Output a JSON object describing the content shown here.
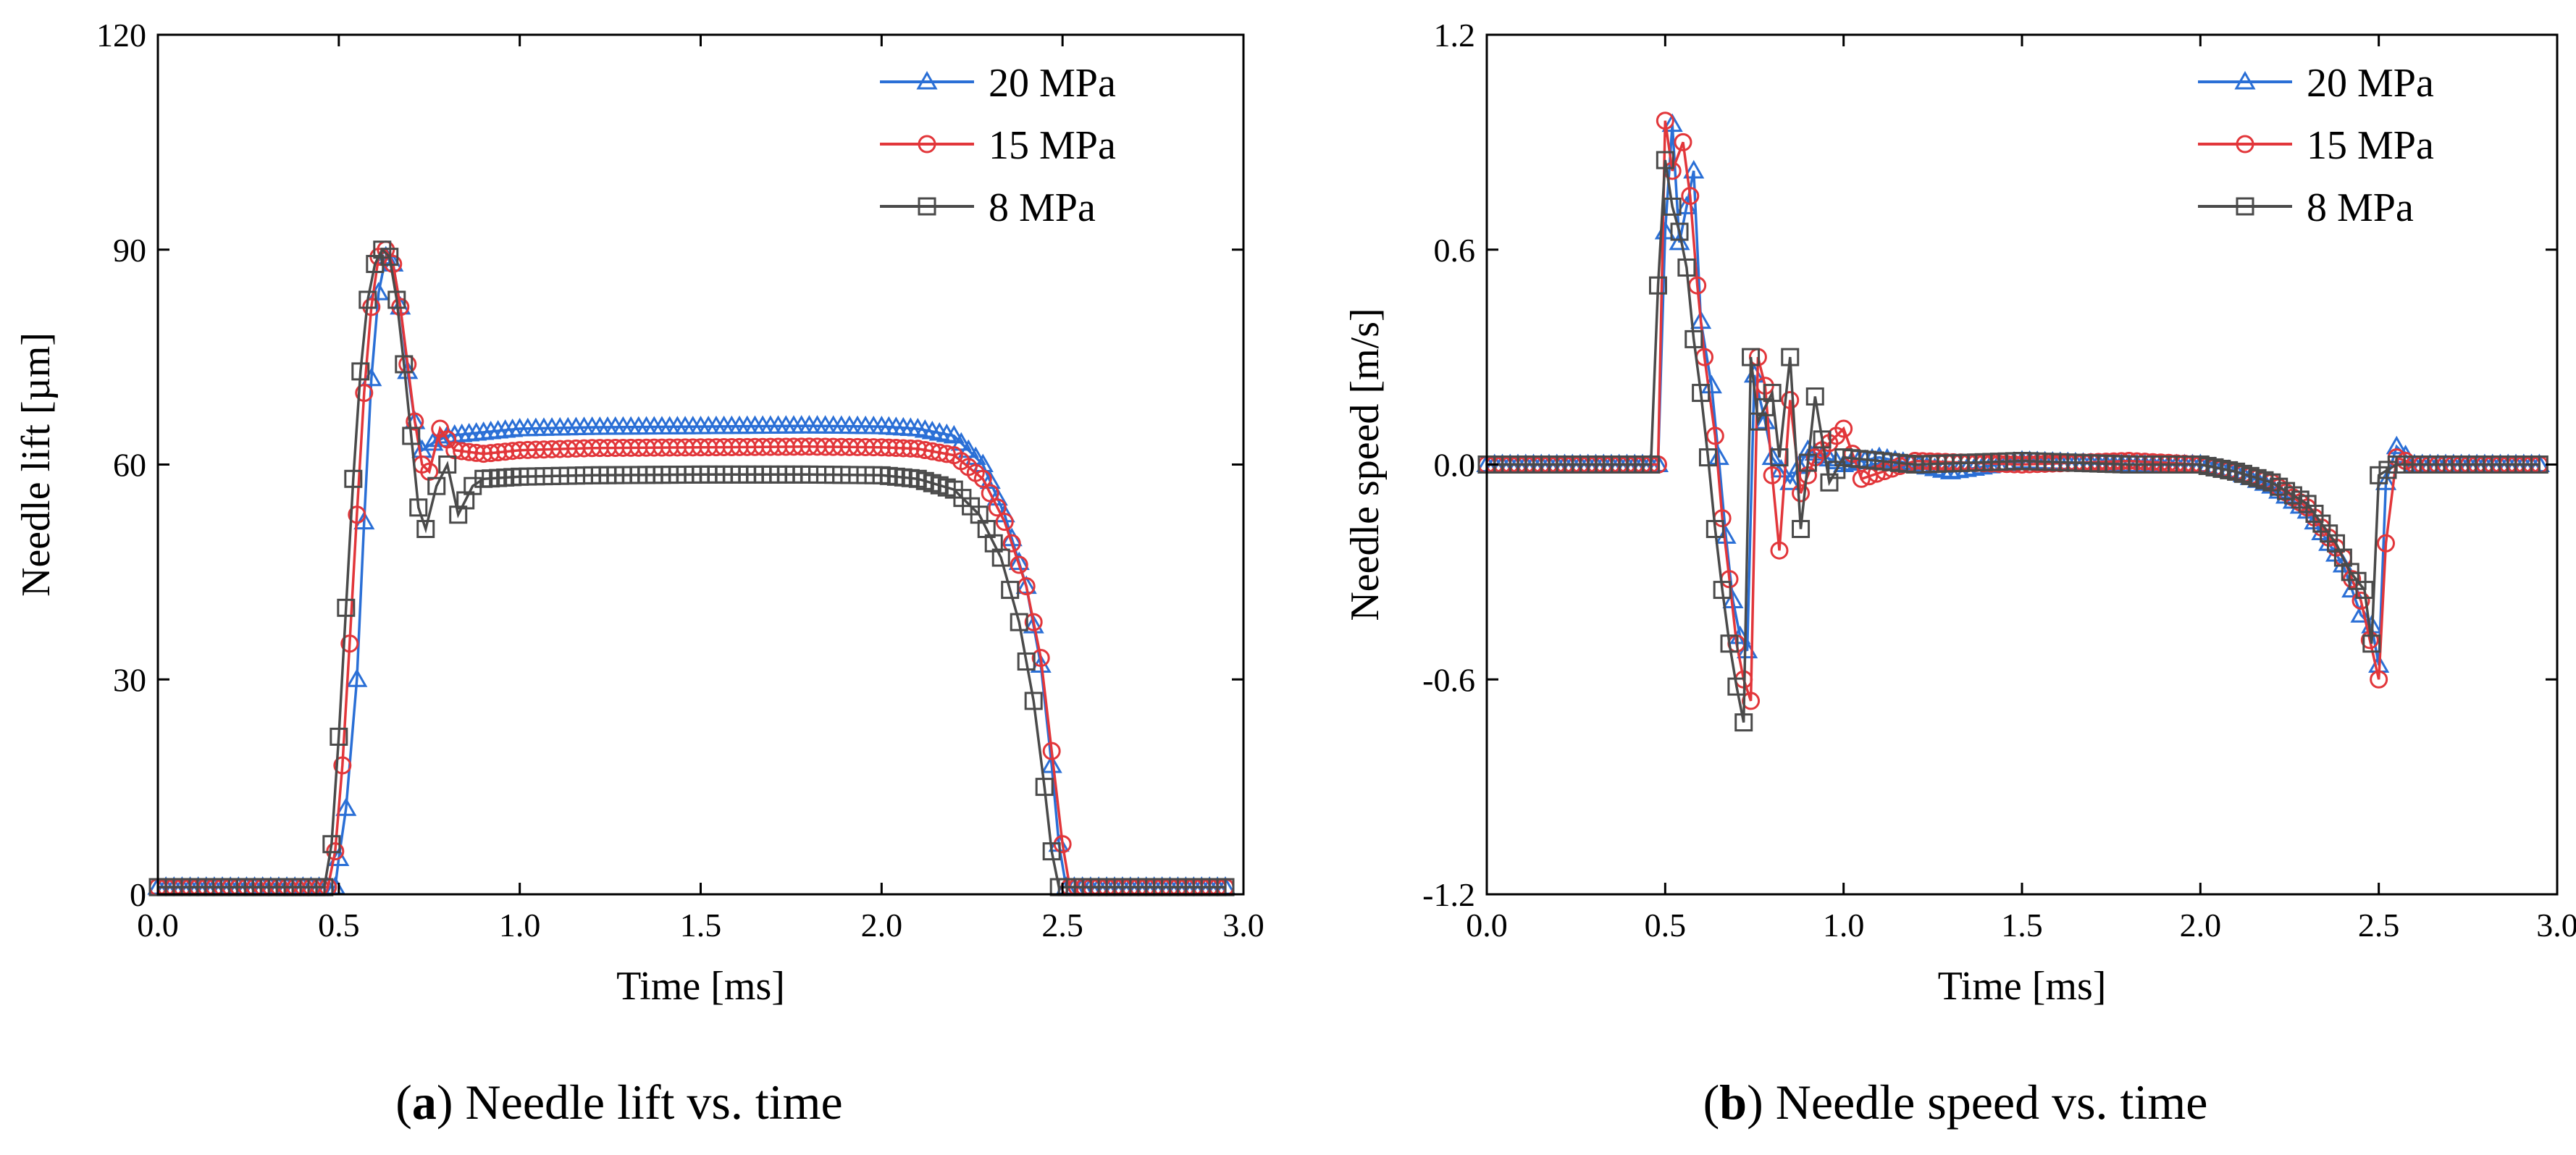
{
  "colors": {
    "p20": "#2a6fd6",
    "p15": "#e2363a",
    "p8": "#4a4a4a"
  },
  "captions": [
    {
      "letter": "a",
      "text": " Needle lift vs. time"
    },
    {
      "letter": "b",
      "text": " Needle speed vs. time"
    }
  ],
  "chart_data": [
    {
      "type": "line",
      "xlabel": "Time [ms]",
      "ylabel": "Needle lift [µm]",
      "xlim": [
        0,
        3.0
      ],
      "ylim": [
        0,
        120
      ],
      "xticks": [
        "0.0",
        "0.5",
        "1.0",
        "1.5",
        "2.0",
        "2.5",
        "3.0"
      ],
      "xtick_values": [
        0,
        0.5,
        1.0,
        1.5,
        2.0,
        2.5,
        3.0
      ],
      "yticks": [
        "0",
        "30",
        "60",
        "90",
        "120"
      ],
      "ytick_values": [
        0,
        30,
        60,
        90,
        120
      ],
      "legend_position": "top-right",
      "series": [
        {
          "name": "20 MPa",
          "marker": "triangle",
          "color_key": "p20",
          "points": [
            [
              0,
              1
            ],
            [
              0.49,
              1
            ],
            [
              0.5,
              5
            ],
            [
              0.52,
              12
            ],
            [
              0.55,
              30
            ],
            [
              0.57,
              52
            ],
            [
              0.59,
              72
            ],
            [
              0.61,
              84
            ],
            [
              0.63,
              89
            ],
            [
              0.65,
              88
            ],
            [
              0.67,
              82
            ],
            [
              0.69,
              73
            ],
            [
              0.71,
              66
            ],
            [
              0.73,
              62
            ],
            [
              0.76,
              63
            ],
            [
              0.8,
              64
            ],
            [
              0.9,
              64.5
            ],
            [
              1.0,
              65
            ],
            [
              1.2,
              65.2
            ],
            [
              1.5,
              65.3
            ],
            [
              1.8,
              65.4
            ],
            [
              2.0,
              65.3
            ],
            [
              2.1,
              65
            ],
            [
              2.2,
              64
            ],
            [
              2.28,
              60
            ],
            [
              2.34,
              53
            ],
            [
              2.4,
              43
            ],
            [
              2.44,
              32
            ],
            [
              2.47,
              18
            ],
            [
              2.49,
              7
            ],
            [
              2.51,
              1
            ],
            [
              2.6,
              1
            ],
            [
              2.95,
              1
            ]
          ]
        },
        {
          "name": "15 MPa",
          "marker": "circle",
          "color_key": "p15",
          "points": [
            [
              0,
              1
            ],
            [
              0.47,
              1
            ],
            [
              0.49,
              6
            ],
            [
              0.51,
              18
            ],
            [
              0.53,
              35
            ],
            [
              0.55,
              53
            ],
            [
              0.57,
              70
            ],
            [
              0.59,
              82
            ],
            [
              0.61,
              89
            ],
            [
              0.63,
              90
            ],
            [
              0.65,
              88
            ],
            [
              0.67,
              82
            ],
            [
              0.69,
              74
            ],
            [
              0.71,
              66
            ],
            [
              0.73,
              60
            ],
            [
              0.75,
              59
            ],
            [
              0.78,
              65
            ],
            [
              0.82,
              62
            ],
            [
              0.9,
              61.5
            ],
            [
              1.0,
              62
            ],
            [
              1.2,
              62.3
            ],
            [
              1.5,
              62.4
            ],
            [
              1.8,
              62.5
            ],
            [
              2.0,
              62.4
            ],
            [
              2.1,
              62.2
            ],
            [
              2.2,
              61.3
            ],
            [
              2.28,
              58
            ],
            [
              2.34,
              52
            ],
            [
              2.4,
              43
            ],
            [
              2.44,
              33
            ],
            [
              2.47,
              20
            ],
            [
              2.5,
              7
            ],
            [
              2.52,
              1
            ],
            [
              2.6,
              1
            ],
            [
              2.95,
              1
            ]
          ]
        },
        {
          "name": "8 MPa",
          "marker": "square",
          "color_key": "p8",
          "points": [
            [
              0,
              1
            ],
            [
              0.46,
              1
            ],
            [
              0.48,
              7
            ],
            [
              0.5,
              22
            ],
            [
              0.52,
              40
            ],
            [
              0.54,
              58
            ],
            [
              0.56,
              73
            ],
            [
              0.58,
              83
            ],
            [
              0.6,
              88
            ],
            [
              0.62,
              90
            ],
            [
              0.64,
              89
            ],
            [
              0.66,
              83
            ],
            [
              0.68,
              74
            ],
            [
              0.7,
              64
            ],
            [
              0.72,
              54
            ],
            [
              0.74,
              51
            ],
            [
              0.77,
              57
            ],
            [
              0.8,
              60
            ],
            [
              0.83,
              53
            ],
            [
              0.87,
              57
            ],
            [
              0.9,
              58
            ],
            [
              1.0,
              58.3
            ],
            [
              1.2,
              58.5
            ],
            [
              1.5,
              58.6
            ],
            [
              1.8,
              58.6
            ],
            [
              2.0,
              58.5
            ],
            [
              2.1,
              58
            ],
            [
              2.2,
              56.5
            ],
            [
              2.27,
              53
            ],
            [
              2.33,
              47
            ],
            [
              2.38,
              38
            ],
            [
              2.42,
              27
            ],
            [
              2.45,
              15
            ],
            [
              2.47,
              6
            ],
            [
              2.49,
              1
            ],
            [
              2.6,
              1
            ],
            [
              2.95,
              1
            ]
          ]
        }
      ]
    },
    {
      "type": "line",
      "xlabel": "Time [ms]",
      "ylabel": "Needle speed [m/s]",
      "xlim": [
        0,
        3.0
      ],
      "ylim": [
        -1.2,
        1.2
      ],
      "xticks": [
        "0.0",
        "0.5",
        "1.0",
        "1.5",
        "2.0",
        "2.5",
        "3.0"
      ],
      "xtick_values": [
        0,
        0.5,
        1.0,
        1.5,
        2.0,
        2.5,
        3.0
      ],
      "yticks": [
        "-1.2",
        "-0.6",
        "0.0",
        "0.6",
        "1.2"
      ],
      "ytick_values": [
        -1.2,
        -0.6,
        0,
        0.6,
        1.2
      ],
      "legend_position": "top-right",
      "series": [
        {
          "name": "20 MPa",
          "marker": "triangle",
          "color_key": "p20",
          "points": [
            [
              0,
              0
            ],
            [
              0.48,
              0
            ],
            [
              0.5,
              0.65
            ],
            [
              0.52,
              0.95
            ],
            [
              0.54,
              0.62
            ],
            [
              0.56,
              0.72
            ],
            [
              0.58,
              0.82
            ],
            [
              0.6,
              0.4
            ],
            [
              0.63,
              0.22
            ],
            [
              0.65,
              0.02
            ],
            [
              0.67,
              -0.2
            ],
            [
              0.69,
              -0.38
            ],
            [
              0.71,
              -0.48
            ],
            [
              0.73,
              -0.52
            ],
            [
              0.75,
              0.25
            ],
            [
              0.78,
              0.12
            ],
            [
              0.8,
              0.02
            ],
            [
              0.85,
              -0.05
            ],
            [
              0.9,
              0.04
            ],
            [
              1.0,
              0
            ],
            [
              1.1,
              0.02
            ],
            [
              1.3,
              -0.02
            ],
            [
              1.5,
              0.01
            ],
            [
              1.8,
              0
            ],
            [
              2.0,
              0
            ],
            [
              2.1,
              -0.02
            ],
            [
              2.2,
              -0.06
            ],
            [
              2.3,
              -0.13
            ],
            [
              2.4,
              -0.28
            ],
            [
              2.45,
              -0.42
            ],
            [
              2.48,
              -0.45
            ],
            [
              2.5,
              -0.56
            ],
            [
              2.52,
              -0.05
            ],
            [
              2.55,
              0.05
            ],
            [
              2.6,
              0
            ],
            [
              2.95,
              0
            ]
          ]
        },
        {
          "name": "15 MPa",
          "marker": "circle",
          "color_key": "p15",
          "points": [
            [
              0,
              0
            ],
            [
              0.48,
              0
            ],
            [
              0.5,
              0.96
            ],
            [
              0.52,
              0.82
            ],
            [
              0.55,
              0.9
            ],
            [
              0.57,
              0.75
            ],
            [
              0.59,
              0.5
            ],
            [
              0.61,
              0.3
            ],
            [
              0.64,
              0.08
            ],
            [
              0.66,
              -0.15
            ],
            [
              0.68,
              -0.32
            ],
            [
              0.7,
              -0.5
            ],
            [
              0.72,
              -0.6
            ],
            [
              0.74,
              -0.66
            ],
            [
              0.76,
              0.3
            ],
            [
              0.78,
              0.22
            ],
            [
              0.8,
              -0.03
            ],
            [
              0.82,
              -0.24
            ],
            [
              0.85,
              0.18
            ],
            [
              0.88,
              -0.08
            ],
            [
              0.92,
              0.02
            ],
            [
              1.0,
              0.1
            ],
            [
              1.05,
              -0.04
            ],
            [
              1.2,
              0.01
            ],
            [
              1.5,
              0
            ],
            [
              1.8,
              0.01
            ],
            [
              2.0,
              0
            ],
            [
              2.1,
              -0.02
            ],
            [
              2.2,
              -0.05
            ],
            [
              2.3,
              -0.12
            ],
            [
              2.4,
              -0.26
            ],
            [
              2.45,
              -0.38
            ],
            [
              2.5,
              -0.6
            ],
            [
              2.52,
              -0.22
            ],
            [
              2.55,
              0.02
            ],
            [
              2.6,
              0
            ],
            [
              2.95,
              0
            ]
          ]
        },
        {
          "name": "8 MPa",
          "marker": "square",
          "color_key": "p8",
          "points": [
            [
              0,
              0
            ],
            [
              0.46,
              0
            ],
            [
              0.48,
              0.5
            ],
            [
              0.5,
              0.85
            ],
            [
              0.52,
              0.72
            ],
            [
              0.54,
              0.65
            ],
            [
              0.56,
              0.55
            ],
            [
              0.58,
              0.35
            ],
            [
              0.6,
              0.2
            ],
            [
              0.62,
              0.02
            ],
            [
              0.64,
              -0.18
            ],
            [
              0.66,
              -0.35
            ],
            [
              0.68,
              -0.5
            ],
            [
              0.7,
              -0.62
            ],
            [
              0.72,
              -0.72
            ],
            [
              0.74,
              0.3
            ],
            [
              0.76,
              0.12
            ],
            [
              0.8,
              0.2
            ],
            [
              0.82,
              0.02
            ],
            [
              0.85,
              0.3
            ],
            [
              0.88,
              -0.18
            ],
            [
              0.92,
              0.19
            ],
            [
              0.96,
              -0.05
            ],
            [
              1.0,
              0.02
            ],
            [
              1.2,
              0
            ],
            [
              1.5,
              0.01
            ],
            [
              1.8,
              0
            ],
            [
              2.0,
              0
            ],
            [
              2.1,
              -0.02
            ],
            [
              2.2,
              -0.05
            ],
            [
              2.3,
              -0.11
            ],
            [
              2.38,
              -0.22
            ],
            [
              2.42,
              -0.3
            ],
            [
              2.46,
              -0.35
            ],
            [
              2.48,
              -0.5
            ],
            [
              2.5,
              -0.03
            ],
            [
              2.55,
              0
            ],
            [
              2.95,
              0
            ]
          ]
        }
      ]
    }
  ]
}
